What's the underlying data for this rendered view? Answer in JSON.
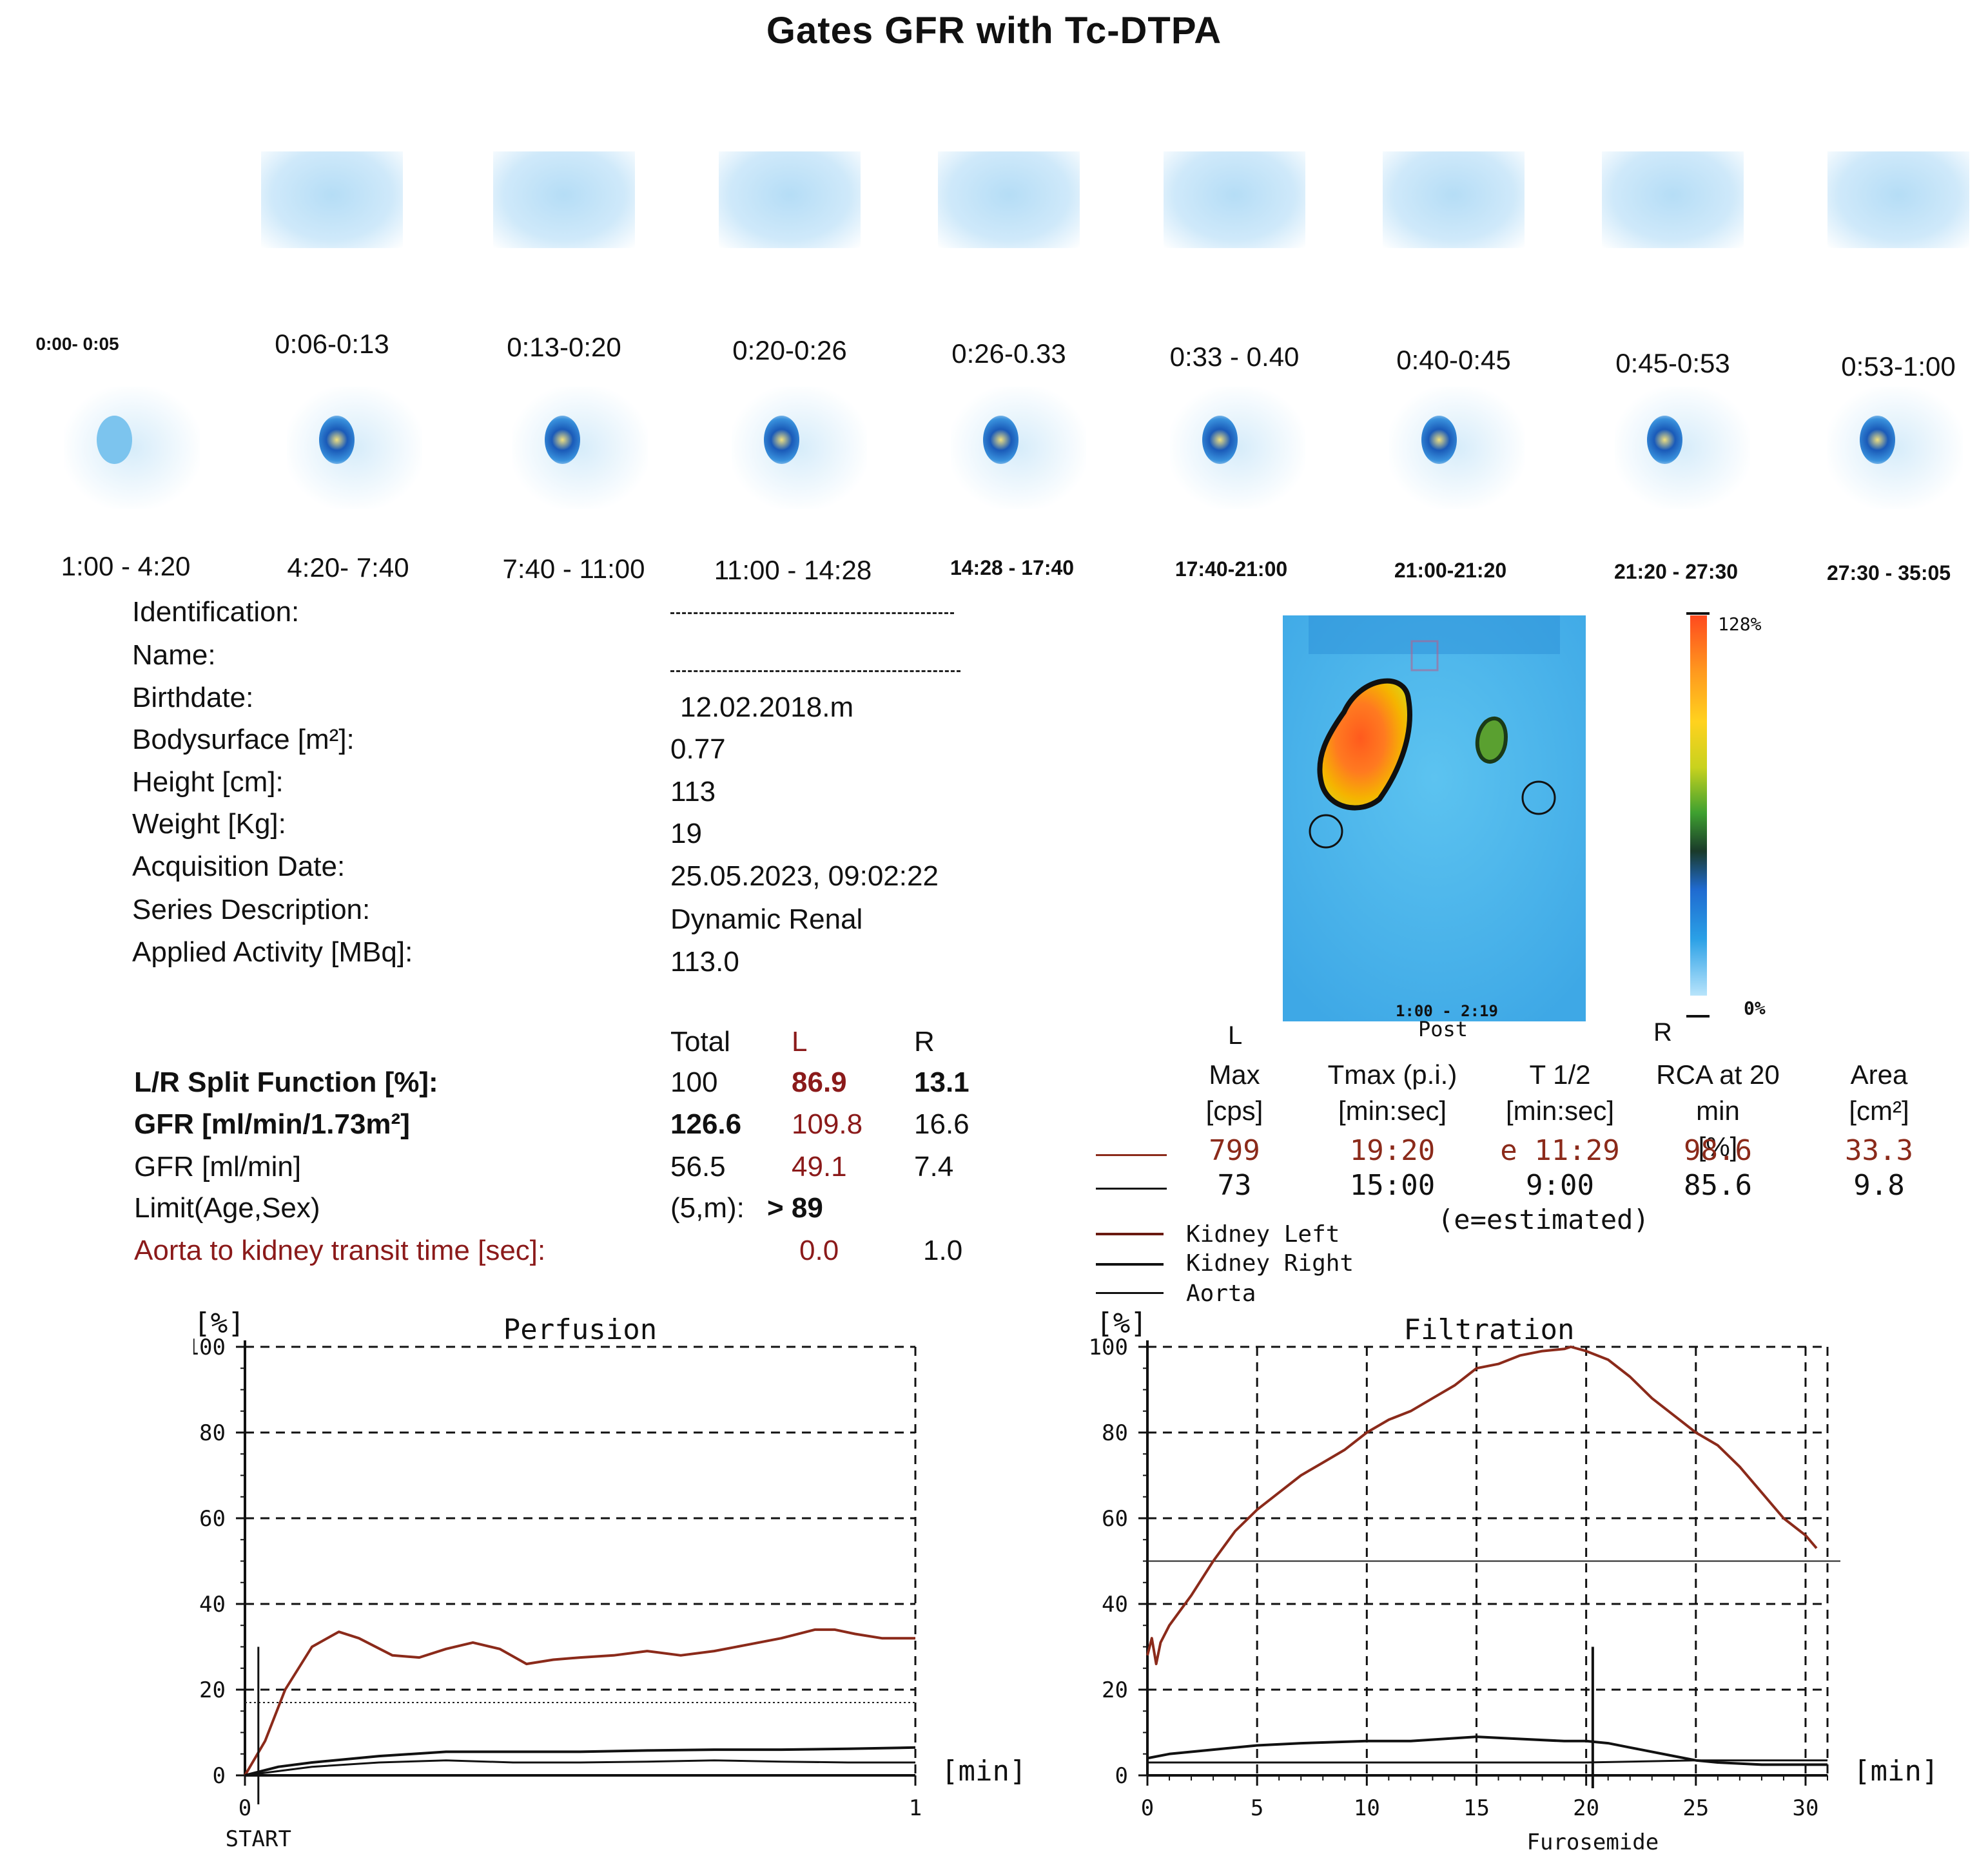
{
  "title": "Gates GFR with Tc-DTPA",
  "frames_row1": [
    "0:00- 0:05",
    "0:06-0:13",
    "0:13-0:20",
    "0:20-0:26",
    "0:26-0.33",
    "0:33 - 0.40",
    "0:40-0:45",
    "0:45-0:53",
    "0:53-1:00"
  ],
  "frames_row2": [
    "1:00 - 4:20",
    "4:20- 7:40",
    "7:40 - 11:00",
    "11:00 - 14:28",
    "14:28 - 17:40",
    "17:40-21:00",
    "21:00-21:20",
    "21:20 - 27:30",
    "27:30 - 35:05"
  ],
  "patient": {
    "labels": [
      "Identification:",
      "Name:",
      "Birthdate:",
      "Bodysurface [m²]:",
      "Height [cm]:",
      "Weight [Kg]:",
      "Acquisition Date:",
      "Series Description:",
      "Applied Activity [MBq]:"
    ],
    "values": [
      "",
      "",
      "12.02.2018.m",
      "0.77",
      "113",
      "19",
      "25.05.2023, 09:02:22",
      "Dynamic Renal",
      "113.0"
    ]
  },
  "sum_image": {
    "scale_max": "128%",
    "scale_min": "0%",
    "time": "1:00 - 2:19",
    "view": "Post",
    "left": "L",
    "right": "R"
  },
  "results": {
    "col_total": "Total",
    "col_l": "L",
    "col_r": "R",
    "rows": [
      {
        "label": "L/R Split Function [%]:",
        "total": "100",
        "l": "86.9",
        "r": "13.1"
      },
      {
        "label": "GFR [ml/min/1.73m²]",
        "total": "126.6",
        "l": "109.8",
        "r": "16.6"
      },
      {
        "label": "GFR [ml/min]",
        "total": "56.5",
        "l": "49.1",
        "r": "7.4"
      },
      {
        "label": "Limit(Age,Sex)",
        "total": "(5,m):",
        "l": "> 89",
        "r": ""
      },
      {
        "label": "Aorta to kidney transit time [sec]:",
        "total": "",
        "l": "0.0",
        "r": "1.0"
      }
    ]
  },
  "kidney_table": {
    "headers": [
      "Max\n[cps]",
      "Tmax (p.i.)\n[min:sec]",
      "T 1/2\n[min:sec]",
      "RCA at 20 min\n[%]",
      "Area\n[cm²]"
    ],
    "rows": [
      {
        "max": "799",
        "tmax": "19:20",
        "t_half": "e 11:29",
        "rca": "98.6",
        "area": "33.3"
      },
      {
        "max": "73",
        "tmax": "15:00",
        "t_half": "9:00",
        "rca": "85.6",
        "area": "9.8"
      }
    ],
    "note": "(e=estimated)"
  },
  "legend": [
    "Kidney Left",
    "Kidney Right",
    "Aorta"
  ],
  "colors": {
    "left": "#8b2a1a",
    "right": "#111111",
    "aorta": "#111111"
  },
  "chart_data": [
    {
      "type": "line",
      "title": "Perfusion",
      "ylabel": "[%]",
      "xlabel": "[min]",
      "xlim": [
        0,
        1
      ],
      "ylim": [
        0,
        100
      ],
      "x_ticks": [
        "0",
        "1"
      ],
      "y_ticks": [
        "0",
        "20",
        "40",
        "60",
        "80",
        "100"
      ],
      "x_annotation": "START",
      "series": [
        {
          "name": "Kidney Left",
          "x": [
            0,
            0.03,
            0.06,
            0.1,
            0.14,
            0.17,
            0.22,
            0.26,
            0.3,
            0.34,
            0.38,
            0.42,
            0.46,
            0.5,
            0.55,
            0.6,
            0.65,
            0.7,
            0.75,
            0.8,
            0.85,
            0.88,
            0.91,
            0.95,
            1.0
          ],
          "y": [
            0,
            8,
            20,
            30,
            33.5,
            32,
            28,
            27.5,
            29.5,
            31,
            29.5,
            26,
            27,
            27.5,
            28,
            29,
            28,
            29,
            30.5,
            32,
            34,
            34,
            33,
            32,
            32
          ]
        },
        {
          "name": "Kidney Right",
          "x": [
            0,
            0.05,
            0.1,
            0.2,
            0.3,
            0.4,
            0.5,
            0.6,
            0.7,
            0.8,
            0.9,
            1.0
          ],
          "y": [
            0,
            2,
            3,
            4.5,
            5.5,
            5.5,
            5.5,
            5.8,
            6,
            6,
            6.2,
            6.5
          ]
        },
        {
          "name": "Aorta",
          "x": [
            0,
            0.05,
            0.1,
            0.2,
            0.3,
            0.4,
            0.5,
            0.6,
            0.7,
            0.8,
            0.9,
            1.0
          ],
          "y": [
            0,
            1,
            2,
            3,
            3.5,
            3,
            3,
            3.2,
            3.5,
            3.2,
            3,
            3
          ]
        }
      ]
    },
    {
      "type": "line",
      "title": "Filtration",
      "ylabel": "[%]",
      "xlabel": "[min]",
      "xlim": [
        0,
        31
      ],
      "ylim": [
        0,
        100
      ],
      "x_ticks": [
        "0",
        "5",
        "10",
        "15",
        "20",
        "25",
        "30"
      ],
      "y_ticks": [
        "0",
        "20",
        "40",
        "60",
        "80",
        "100"
      ],
      "x_annotation": "Furosemide",
      "marker_x": 20.3,
      "series": [
        {
          "name": "Kidney Left",
          "x": [
            0,
            0.2,
            0.4,
            0.6,
            1,
            2,
            3,
            4,
            5,
            6,
            7,
            8,
            9,
            10,
            11,
            12,
            13,
            14,
            15,
            16,
            17,
            18,
            19,
            19.3,
            20,
            21,
            22,
            23,
            24,
            25,
            26,
            27,
            28,
            29,
            30,
            30.5
          ],
          "y": [
            28,
            32,
            26,
            31,
            35,
            42,
            50,
            57,
            62,
            66,
            70,
            73,
            76,
            80,
            83,
            85,
            88,
            91,
            95,
            96,
            98,
            99,
            99.5,
            100,
            99,
            97,
            93,
            88,
            84,
            80,
            77,
            72,
            66,
            60,
            56,
            53
          ]
        },
        {
          "name": "Kidney Right",
          "x": [
            0,
            1,
            3,
            5,
            7,
            10,
            12,
            15,
            17,
            19,
            20,
            21,
            22,
            24,
            25,
            26,
            28,
            30,
            31
          ],
          "y": [
            4,
            5,
            6,
            7,
            7.5,
            8,
            8,
            9,
            8.5,
            8,
            8,
            7.5,
            6.5,
            4.5,
            3.5,
            3,
            2.5,
            2.5,
            2.5
          ]
        },
        {
          "name": "Aorta",
          "x": [
            0,
            1,
            5,
            10,
            15,
            20,
            25,
            30,
            31
          ],
          "y": [
            3,
            3,
            3,
            3,
            3,
            3,
            3.5,
            3.5,
            3.5
          ]
        }
      ]
    }
  ]
}
